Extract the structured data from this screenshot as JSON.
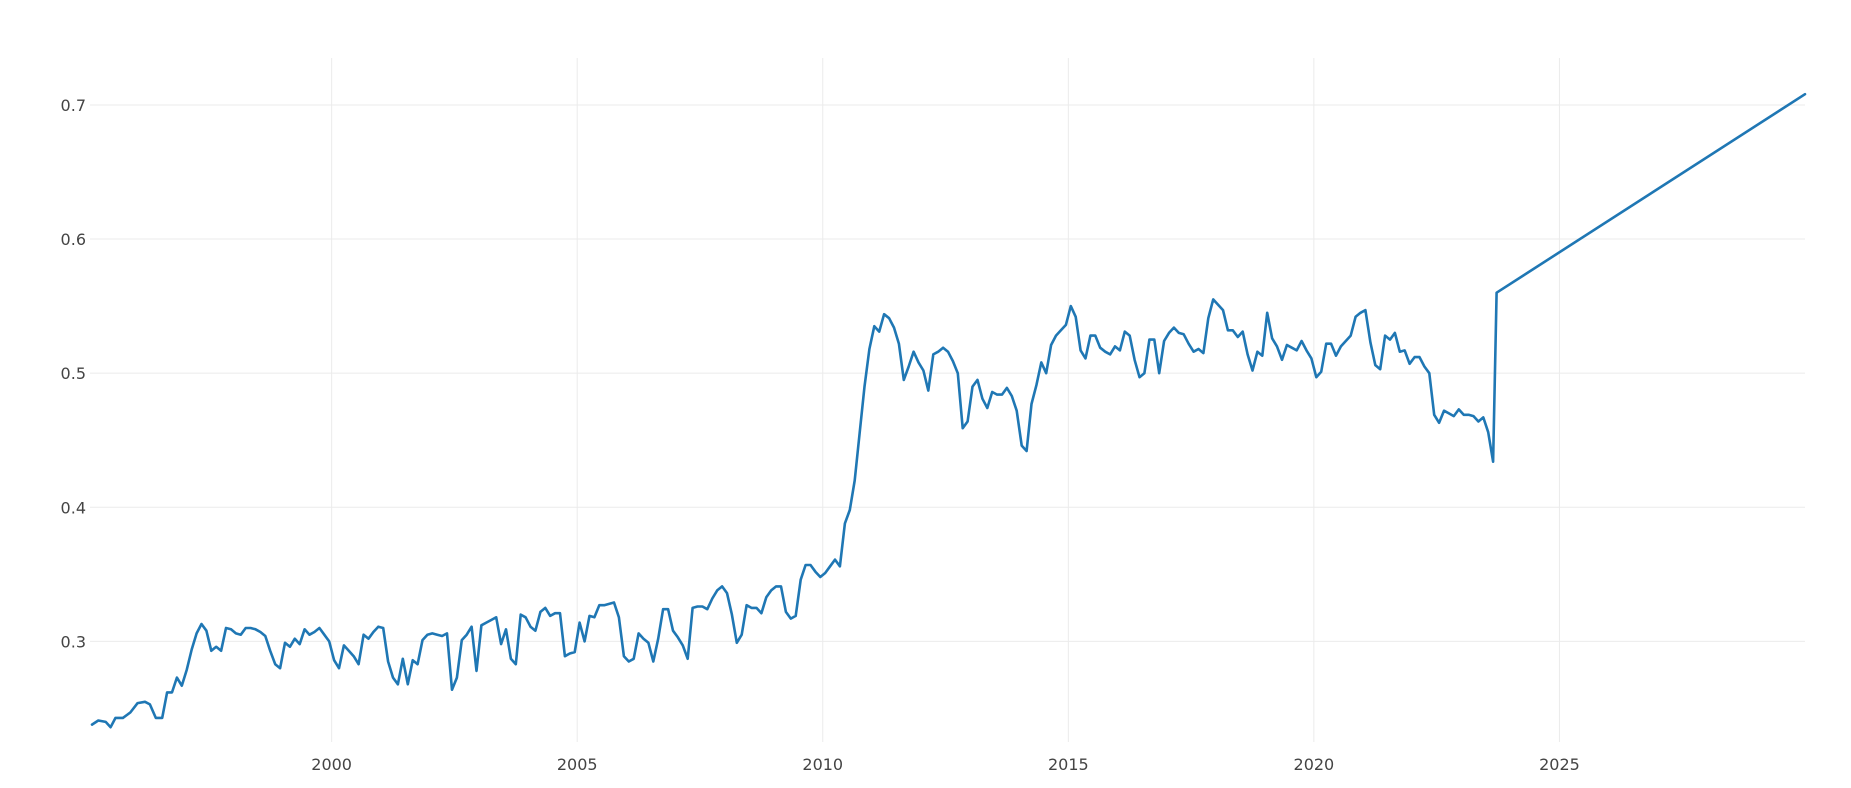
{
  "chart_data": {
    "type": "line",
    "title": "",
    "xlabel": "",
    "ylabel": "",
    "xlim": [
      1995.08,
      2030.0
    ],
    "ylim": [
      0.225,
      0.735
    ],
    "grid": true,
    "legend": "none",
    "colors": {
      "line": "#1f77b4",
      "grid": "#ebebeb",
      "text": "#444444",
      "background": "#ffffff"
    },
    "x_ticks": [
      {
        "value": 2000,
        "label": "2000"
      },
      {
        "value": 2005,
        "label": "2005"
      },
      {
        "value": 2010,
        "label": "2010"
      },
      {
        "value": 2015,
        "label": "2015"
      },
      {
        "value": 2020,
        "label": "2020"
      },
      {
        "value": 2025,
        "label": "2025"
      }
    ],
    "y_ticks": [
      {
        "value": 0.3,
        "label": "0.3"
      },
      {
        "value": 0.4,
        "label": "0.4"
      },
      {
        "value": 0.5,
        "label": "0.5"
      },
      {
        "value": 0.6,
        "label": "0.6"
      },
      {
        "value": 0.7,
        "label": "0.7"
      }
    ],
    "series": [
      {
        "points": [
          [
            1995.12,
            0.238
          ],
          [
            1995.25,
            0.241
          ],
          [
            1995.4,
            0.24
          ],
          [
            1995.5,
            0.236
          ],
          [
            1995.6,
            0.243
          ],
          [
            1995.75,
            0.243
          ],
          [
            1995.9,
            0.247
          ],
          [
            1996.05,
            0.254
          ],
          [
            1996.2,
            0.255
          ],
          [
            1996.3,
            0.253
          ],
          [
            1996.42,
            0.243
          ],
          [
            1996.55,
            0.243
          ],
          [
            1996.65,
            0.262
          ],
          [
            1996.75,
            0.262
          ],
          [
            1996.85,
            0.273
          ],
          [
            1996.95,
            0.267
          ],
          [
            1997.05,
            0.279
          ],
          [
            1997.15,
            0.294
          ],
          [
            1997.25,
            0.306
          ],
          [
            1997.35,
            0.313
          ],
          [
            1997.45,
            0.308
          ],
          [
            1997.55,
            0.293
          ],
          [
            1997.65,
            0.296
          ],
          [
            1997.75,
            0.293
          ],
          [
            1997.85,
            0.31
          ],
          [
            1997.95,
            0.309
          ],
          [
            1998.05,
            0.306
          ],
          [
            1998.15,
            0.305
          ],
          [
            1998.25,
            0.31
          ],
          [
            1998.35,
            0.31
          ],
          [
            1998.45,
            0.309
          ],
          [
            1998.55,
            0.307
          ],
          [
            1998.65,
            0.304
          ],
          [
            1998.75,
            0.293
          ],
          [
            1998.85,
            0.283
          ],
          [
            1998.95,
            0.28
          ],
          [
            1999.05,
            0.299
          ],
          [
            1999.15,
            0.296
          ],
          [
            1999.25,
            0.302
          ],
          [
            1999.35,
            0.298
          ],
          [
            1999.45,
            0.309
          ],
          [
            1999.55,
            0.305
          ],
          [
            1999.65,
            0.307
          ],
          [
            1999.75,
            0.31
          ],
          [
            1999.85,
            0.305
          ],
          [
            1999.95,
            0.3
          ],
          [
            2000.05,
            0.286
          ],
          [
            2000.15,
            0.28
          ],
          [
            2000.25,
            0.297
          ],
          [
            2000.35,
            0.293
          ],
          [
            2000.45,
            0.289
          ],
          [
            2000.55,
            0.283
          ],
          [
            2000.65,
            0.305
          ],
          [
            2000.75,
            0.302
          ],
          [
            2000.85,
            0.307
          ],
          [
            2000.95,
            0.311
          ],
          [
            2001.05,
            0.31
          ],
          [
            2001.15,
            0.285
          ],
          [
            2001.25,
            0.273
          ],
          [
            2001.35,
            0.268
          ],
          [
            2001.45,
            0.287
          ],
          [
            2001.55,
            0.268
          ],
          [
            2001.65,
            0.286
          ],
          [
            2001.75,
            0.283
          ],
          [
            2001.85,
            0.301
          ],
          [
            2001.95,
            0.305
          ],
          [
            2002.05,
            0.306
          ],
          [
            2002.15,
            0.305
          ],
          [
            2002.25,
            0.304
          ],
          [
            2002.35,
            0.306
          ],
          [
            2002.45,
            0.264
          ],
          [
            2002.55,
            0.273
          ],
          [
            2002.65,
            0.301
          ],
          [
            2002.75,
            0.305
          ],
          [
            2002.85,
            0.311
          ],
          [
            2002.95,
            0.278
          ],
          [
            2003.05,
            0.312
          ],
          [
            2003.15,
            0.314
          ],
          [
            2003.25,
            0.316
          ],
          [
            2003.35,
            0.318
          ],
          [
            2003.45,
            0.298
          ],
          [
            2003.55,
            0.309
          ],
          [
            2003.65,
            0.287
          ],
          [
            2003.75,
            0.283
          ],
          [
            2003.85,
            0.32
          ],
          [
            2003.95,
            0.318
          ],
          [
            2004.05,
            0.311
          ],
          [
            2004.15,
            0.308
          ],
          [
            2004.25,
            0.322
          ],
          [
            2004.35,
            0.325
          ],
          [
            2004.45,
            0.319
          ],
          [
            2004.55,
            0.321
          ],
          [
            2004.65,
            0.321
          ],
          [
            2004.75,
            0.289
          ],
          [
            2004.85,
            0.291
          ],
          [
            2004.95,
            0.292
          ],
          [
            2005.05,
            0.314
          ],
          [
            2005.15,
            0.3
          ],
          [
            2005.25,
            0.319
          ],
          [
            2005.35,
            0.318
          ],
          [
            2005.45,
            0.327
          ],
          [
            2005.55,
            0.327
          ],
          [
            2005.65,
            0.328
          ],
          [
            2005.75,
            0.329
          ],
          [
            2005.85,
            0.318
          ],
          [
            2005.95,
            0.289
          ],
          [
            2006.05,
            0.285
          ],
          [
            2006.15,
            0.287
          ],
          [
            2006.25,
            0.306
          ],
          [
            2006.35,
            0.302
          ],
          [
            2006.45,
            0.299
          ],
          [
            2006.55,
            0.285
          ],
          [
            2006.65,
            0.302
          ],
          [
            2006.75,
            0.324
          ],
          [
            2006.85,
            0.324
          ],
          [
            2006.95,
            0.308
          ],
          [
            2007.05,
            0.303
          ],
          [
            2007.15,
            0.297
          ],
          [
            2007.25,
            0.287
          ],
          [
            2007.35,
            0.325
          ],
          [
            2007.45,
            0.326
          ],
          [
            2007.55,
            0.326
          ],
          [
            2007.65,
            0.324
          ],
          [
            2007.75,
            0.332
          ],
          [
            2007.85,
            0.338
          ],
          [
            2007.95,
            0.341
          ],
          [
            2008.05,
            0.336
          ],
          [
            2008.15,
            0.32
          ],
          [
            2008.25,
            0.299
          ],
          [
            2008.35,
            0.305
          ],
          [
            2008.45,
            0.327
          ],
          [
            2008.55,
            0.325
          ],
          [
            2008.65,
            0.325
          ],
          [
            2008.75,
            0.321
          ],
          [
            2008.85,
            0.333
          ],
          [
            2008.95,
            0.338
          ],
          [
            2009.05,
            0.341
          ],
          [
            2009.15,
            0.341
          ],
          [
            2009.25,
            0.322
          ],
          [
            2009.35,
            0.317
          ],
          [
            2009.45,
            0.319
          ],
          [
            2009.55,
            0.346
          ],
          [
            2009.65,
            0.357
          ],
          [
            2009.75,
            0.357
          ],
          [
            2009.85,
            0.352
          ],
          [
            2009.95,
            0.348
          ],
          [
            2010.05,
            0.351
          ],
          [
            2010.15,
            0.356
          ],
          [
            2010.25,
            0.361
          ],
          [
            2010.35,
            0.356
          ],
          [
            2010.45,
            0.388
          ],
          [
            2010.55,
            0.398
          ],
          [
            2010.65,
            0.42
          ],
          [
            2010.75,
            0.455
          ],
          [
            2010.85,
            0.49
          ],
          [
            2010.95,
            0.518
          ],
          [
            2011.05,
            0.535
          ],
          [
            2011.15,
            0.531
          ],
          [
            2011.25,
            0.544
          ],
          [
            2011.35,
            0.541
          ],
          [
            2011.45,
            0.534
          ],
          [
            2011.55,
            0.522
          ],
          [
            2011.65,
            0.495
          ],
          [
            2011.75,
            0.505
          ],
          [
            2011.85,
            0.516
          ],
          [
            2011.95,
            0.508
          ],
          [
            2012.05,
            0.502
          ],
          [
            2012.15,
            0.487
          ],
          [
            2012.25,
            0.514
          ],
          [
            2012.35,
            0.516
          ],
          [
            2012.45,
            0.519
          ],
          [
            2012.55,
            0.516
          ],
          [
            2012.65,
            0.509
          ],
          [
            2012.75,
            0.5
          ],
          [
            2012.85,
            0.459
          ],
          [
            2012.95,
            0.464
          ],
          [
            2013.05,
            0.49
          ],
          [
            2013.15,
            0.495
          ],
          [
            2013.25,
            0.481
          ],
          [
            2013.35,
            0.474
          ],
          [
            2013.45,
            0.486
          ],
          [
            2013.55,
            0.484
          ],
          [
            2013.65,
            0.484
          ],
          [
            2013.75,
            0.489
          ],
          [
            2013.85,
            0.483
          ],
          [
            2013.95,
            0.472
          ],
          [
            2014.05,
            0.446
          ],
          [
            2014.15,
            0.442
          ],
          [
            2014.25,
            0.477
          ],
          [
            2014.35,
            0.491
          ],
          [
            2014.45,
            0.508
          ],
          [
            2014.55,
            0.5
          ],
          [
            2014.65,
            0.521
          ],
          [
            2014.75,
            0.528
          ],
          [
            2014.85,
            0.532
          ],
          [
            2014.95,
            0.536
          ],
          [
            2015.05,
            0.55
          ],
          [
            2015.15,
            0.542
          ],
          [
            2015.25,
            0.517
          ],
          [
            2015.35,
            0.511
          ],
          [
            2015.45,
            0.528
          ],
          [
            2015.55,
            0.528
          ],
          [
            2015.65,
            0.519
          ],
          [
            2015.75,
            0.516
          ],
          [
            2015.85,
            0.514
          ],
          [
            2015.95,
            0.52
          ],
          [
            2016.05,
            0.517
          ],
          [
            2016.15,
            0.531
          ],
          [
            2016.25,
            0.528
          ],
          [
            2016.35,
            0.51
          ],
          [
            2016.45,
            0.497
          ],
          [
            2016.55,
            0.5
          ],
          [
            2016.65,
            0.525
          ],
          [
            2016.75,
            0.525
          ],
          [
            2016.85,
            0.5
          ],
          [
            2016.95,
            0.524
          ],
          [
            2017.05,
            0.53
          ],
          [
            2017.15,
            0.534
          ],
          [
            2017.25,
            0.53
          ],
          [
            2017.35,
            0.529
          ],
          [
            2017.45,
            0.522
          ],
          [
            2017.55,
            0.516
          ],
          [
            2017.65,
            0.518
          ],
          [
            2017.75,
            0.515
          ],
          [
            2017.85,
            0.541
          ],
          [
            2017.95,
            0.555
          ],
          [
            2018.05,
            0.551
          ],
          [
            2018.15,
            0.547
          ],
          [
            2018.25,
            0.532
          ],
          [
            2018.35,
            0.532
          ],
          [
            2018.45,
            0.527
          ],
          [
            2018.55,
            0.531
          ],
          [
            2018.65,
            0.514
          ],
          [
            2018.75,
            0.502
          ],
          [
            2018.85,
            0.516
          ],
          [
            2018.95,
            0.513
          ],
          [
            2019.05,
            0.545
          ],
          [
            2019.15,
            0.526
          ],
          [
            2019.25,
            0.52
          ],
          [
            2019.35,
            0.51
          ],
          [
            2019.45,
            0.521
          ],
          [
            2019.55,
            0.519
          ],
          [
            2019.65,
            0.517
          ],
          [
            2019.75,
            0.524
          ],
          [
            2019.85,
            0.517
          ],
          [
            2019.95,
            0.511
          ],
          [
            2020.05,
            0.497
          ],
          [
            2020.15,
            0.501
          ],
          [
            2020.25,
            0.522
          ],
          [
            2020.35,
            0.522
          ],
          [
            2020.45,
            0.513
          ],
          [
            2020.55,
            0.52
          ],
          [
            2020.65,
            0.524
          ],
          [
            2020.75,
            0.528
          ],
          [
            2020.85,
            0.542
          ],
          [
            2020.95,
            0.545
          ],
          [
            2021.05,
            0.547
          ],
          [
            2021.15,
            0.523
          ],
          [
            2021.25,
            0.506
          ],
          [
            2021.35,
            0.503
          ],
          [
            2021.45,
            0.528
          ],
          [
            2021.55,
            0.525
          ],
          [
            2021.65,
            0.53
          ],
          [
            2021.75,
            0.516
          ],
          [
            2021.85,
            0.517
          ],
          [
            2021.95,
            0.507
          ],
          [
            2022.05,
            0.512
          ],
          [
            2022.15,
            0.512
          ],
          [
            2022.25,
            0.505
          ],
          [
            2022.35,
            0.5
          ],
          [
            2022.45,
            0.469
          ],
          [
            2022.55,
            0.463
          ],
          [
            2022.65,
            0.472
          ],
          [
            2022.75,
            0.47
          ],
          [
            2022.85,
            0.468
          ],
          [
            2022.95,
            0.473
          ],
          [
            2023.05,
            0.469
          ],
          [
            2023.15,
            0.469
          ],
          [
            2023.25,
            0.468
          ],
          [
            2023.35,
            0.464
          ],
          [
            2023.45,
            0.467
          ],
          [
            2023.55,
            0.456
          ],
          [
            2023.65,
            0.434
          ],
          [
            2023.72,
            0.56
          ],
          [
            2030.0,
            0.708
          ]
        ]
      }
    ]
  }
}
